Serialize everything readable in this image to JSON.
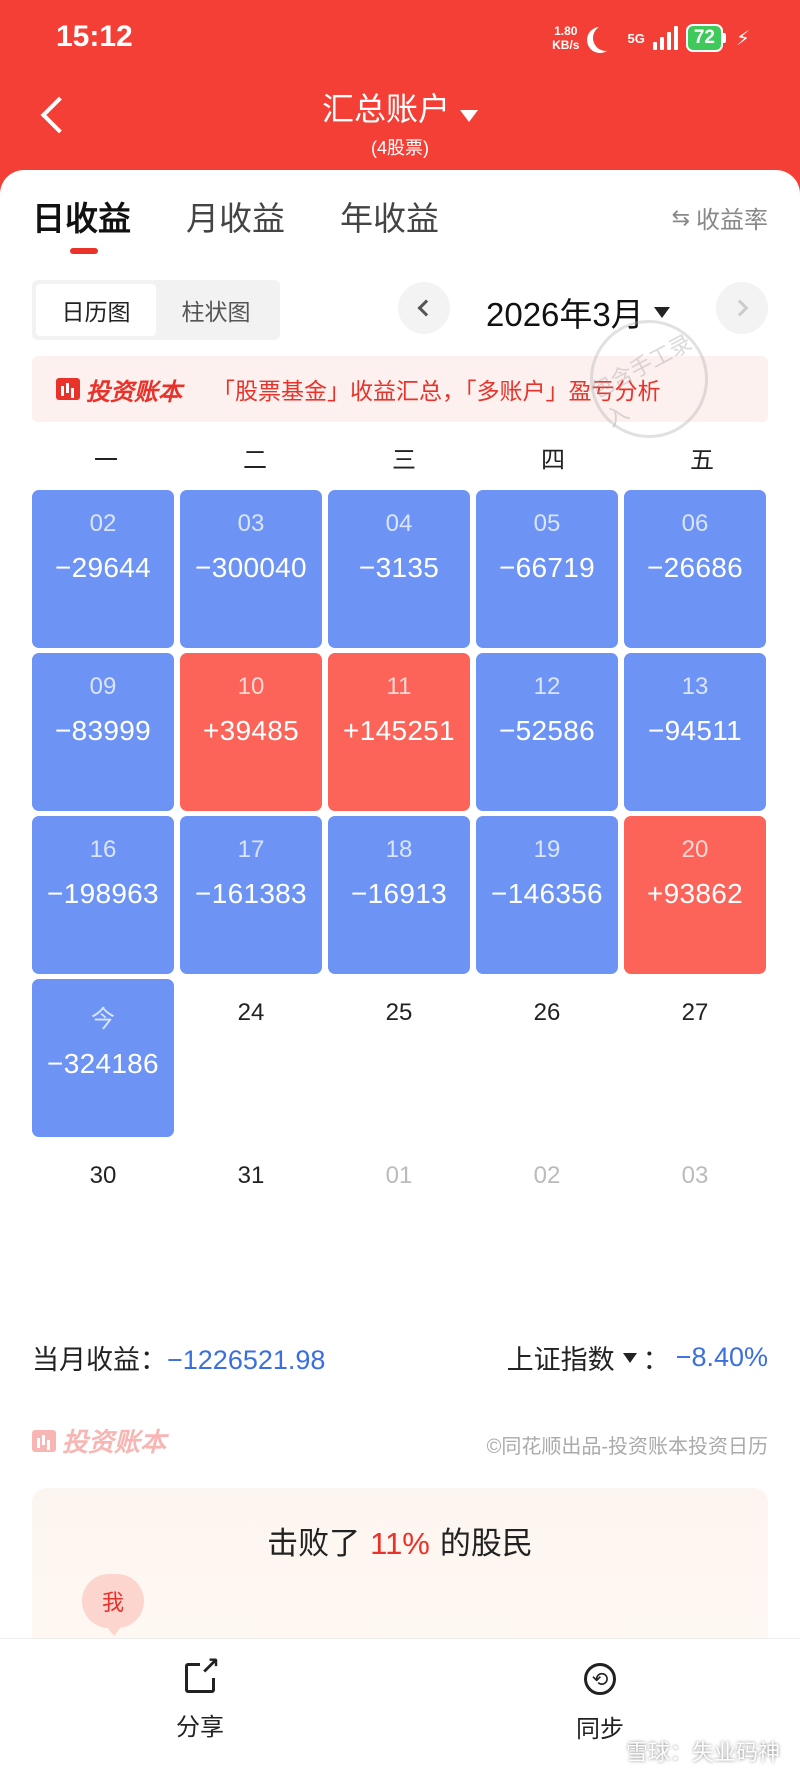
{
  "status_bar": {
    "time": "15:12",
    "net_speed_value": "1.80",
    "net_speed_unit": "KB/s",
    "network": "5G",
    "battery": "72"
  },
  "nav": {
    "title": "汇总账户",
    "subtitle": "(4股票)"
  },
  "tabs": [
    {
      "label": "日收益",
      "active": true
    },
    {
      "label": "月收益",
      "active": false
    },
    {
      "label": "年收益",
      "active": false
    }
  ],
  "rate_toggle_label": "收益率",
  "view_toggle": [
    "日历图",
    "柱状图"
  ],
  "month_label": "2026年3月",
  "promo": {
    "brand": "投资账本",
    "text": "「股票基金」收益汇总，「多账户」盈亏分析"
  },
  "stamp_text": "包含手工录入",
  "weekdays": [
    "一",
    "二",
    "三",
    "四",
    "五"
  ],
  "calendar": [
    {
      "day": "02",
      "value": "−29644",
      "type": "loss"
    },
    {
      "day": "03",
      "value": "−300040",
      "type": "loss"
    },
    {
      "day": "04",
      "value": "−3135",
      "type": "loss"
    },
    {
      "day": "05",
      "value": "−66719",
      "type": "loss"
    },
    {
      "day": "06",
      "value": "−26686",
      "type": "loss"
    },
    {
      "day": "09",
      "value": "−83999",
      "type": "loss"
    },
    {
      "day": "10",
      "value": "+39485",
      "type": "gain"
    },
    {
      "day": "11",
      "value": "+145251",
      "type": "gain"
    },
    {
      "day": "12",
      "value": "−52586",
      "type": "loss"
    },
    {
      "day": "13",
      "value": "−94511",
      "type": "loss"
    },
    {
      "day": "16",
      "value": "−198963",
      "type": "loss"
    },
    {
      "day": "17",
      "value": "−161383",
      "type": "loss"
    },
    {
      "day": "18",
      "value": "−16913",
      "type": "loss"
    },
    {
      "day": "19",
      "value": "−146356",
      "type": "loss"
    },
    {
      "day": "20",
      "value": "+93862",
      "type": "gain"
    },
    {
      "day": "今",
      "value": "−324186",
      "type": "loss"
    },
    {
      "day": "24",
      "value": "",
      "type": "blank"
    },
    {
      "day": "25",
      "value": "",
      "type": "blank"
    },
    {
      "day": "26",
      "value": "",
      "type": "blank"
    },
    {
      "day": "27",
      "value": "",
      "type": "blank"
    },
    {
      "day": "30",
      "value": "",
      "type": "blank"
    },
    {
      "day": "31",
      "value": "",
      "type": "blank"
    },
    {
      "day": "01",
      "value": "",
      "type": "other"
    },
    {
      "day": "02",
      "value": "",
      "type": "other"
    },
    {
      "day": "03",
      "value": "",
      "type": "other"
    }
  ],
  "summary": {
    "monthly_label": "当月收益：",
    "monthly_value": "−1226521.98",
    "index_label": "上证指数",
    "index_sep": "：",
    "index_value": "−8.40%"
  },
  "footer": {
    "brand": "投资账本",
    "credit": "©同花顺出品-投资账本投资日历"
  },
  "beat": {
    "prefix": "击败了",
    "pct": "11%",
    "suffix": "的股民",
    "me_label": "我"
  },
  "bottom_bar": {
    "share_label": "分享",
    "sync_label": "同步"
  },
  "watermark": "雪球：失业码神",
  "colors": {
    "header_red": "#f33f35",
    "loss_blue": "#6d94f5",
    "gain_red": "#fc645a",
    "value_blue": "#3b6fe0"
  }
}
